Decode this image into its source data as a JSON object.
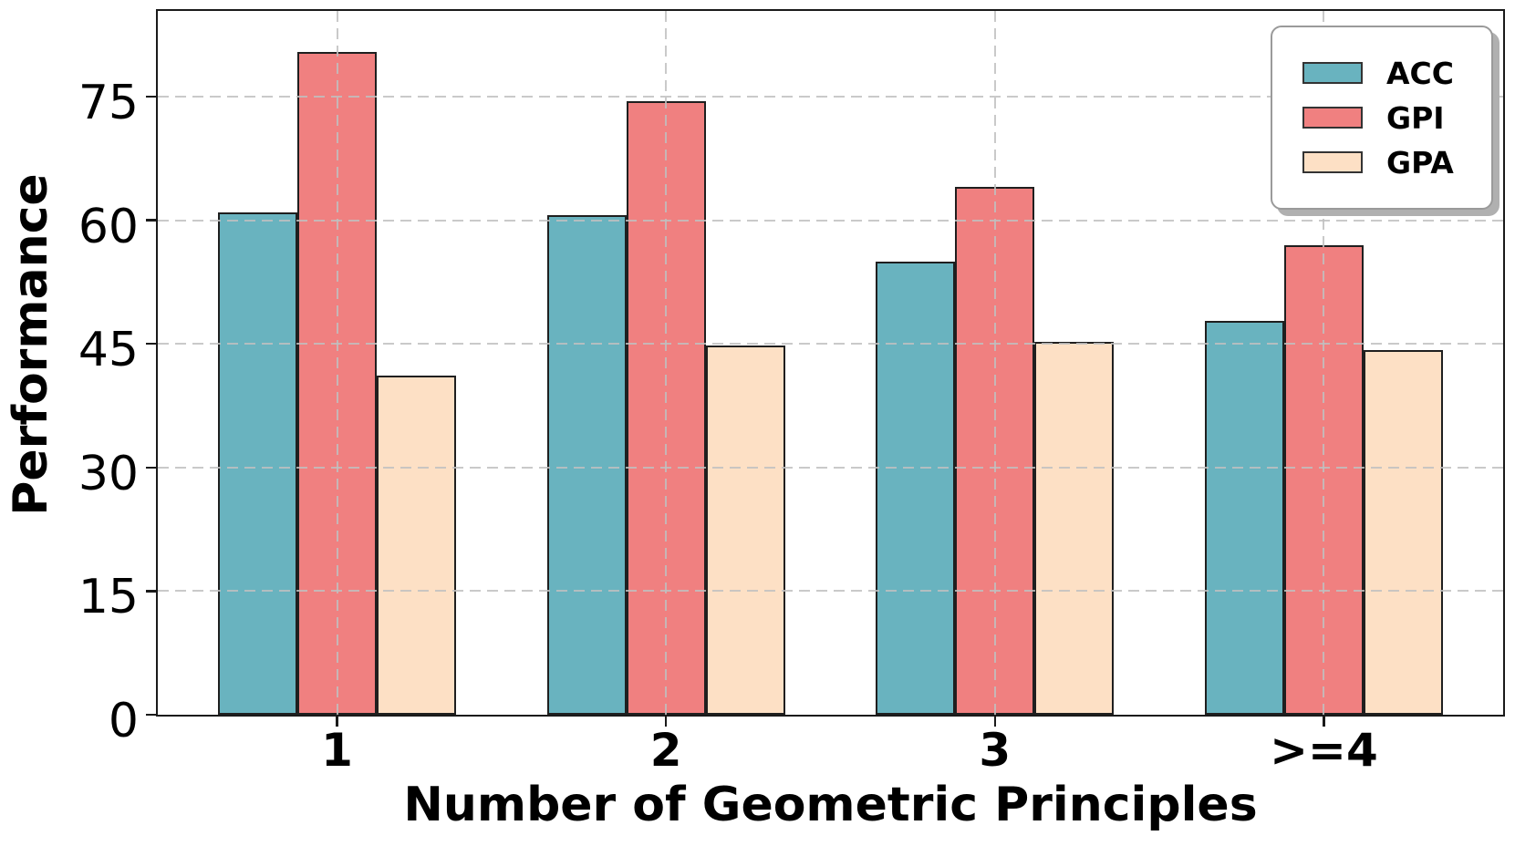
{
  "chart_data": {
    "type": "bar",
    "title": "",
    "xlabel": "Number of Geometric Principles",
    "ylabel": "Performance",
    "categories": [
      "1",
      "2",
      "3",
      ">=4"
    ],
    "series": [
      {
        "name": "ACC",
        "color": "#69b3bf",
        "values": [
          61.0,
          60.6,
          55.0,
          47.8
        ]
      },
      {
        "name": "GPI",
        "color": "#f08080",
        "values": [
          80.4,
          74.5,
          64.0,
          57.0
        ]
      },
      {
        "name": "GPA",
        "color": "#fde0c5",
        "values": [
          41.1,
          44.8,
          45.2,
          44.3
        ]
      }
    ],
    "yticks": [
      0,
      15,
      30,
      45,
      60,
      75
    ],
    "ylim": [
      0,
      85.4
    ],
    "xlim": [
      -0.545,
      3.545
    ],
    "bar_width": 0.2412,
    "grid": true,
    "grid_style": "dashed",
    "grid_axes": "both",
    "legend_position": "upper right",
    "colors": {
      "bar_edge": "#1f1f1f",
      "grid": "#c0c0c0",
      "spine": "#1a1a1a",
      "legend_border": "#9a9a9a",
      "legend_shadow": "#b0b0b0",
      "background": "#ffffff",
      "text": "#000000"
    }
  }
}
